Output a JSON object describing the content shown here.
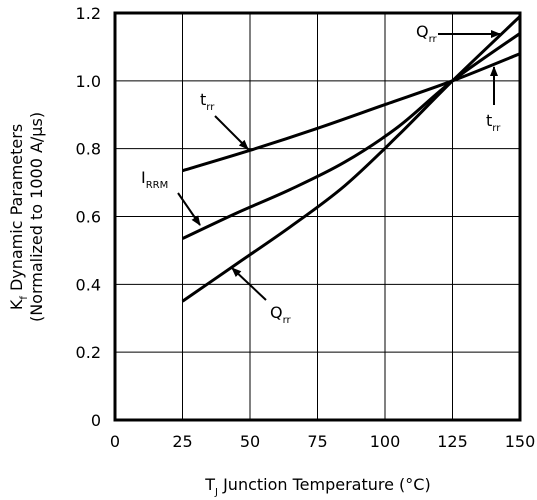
{
  "chart_data": {
    "type": "line",
    "xlabel": {
      "main": "T",
      "sub": "J",
      "rest": " Junction Temperature (°C)"
    },
    "ylabel": {
      "line1": {
        "main": "K",
        "sub": "f",
        "rest": " Dynamic Parameters"
      },
      "line2": "(Normalized to 1000 A/µs)"
    },
    "xlim": [
      0,
      150
    ],
    "ylim": [
      0,
      1.2
    ],
    "xticks": [
      "0",
      "25",
      "50",
      "75",
      "100",
      "125",
      "150"
    ],
    "yticks": [
      "0",
      "0.2",
      "0.4",
      "0.6",
      "0.8",
      "1.0",
      "1.2"
    ],
    "grid": true,
    "series": [
      {
        "x": [
          25,
          50,
          75,
          100,
          125,
          150
        ],
        "y": [
          0.735,
          0.795,
          0.86,
          0.93,
          1.0,
          1.08
        ]
      },
      {
        "x": [
          25,
          45,
          65,
          85,
          105,
          125,
          150
        ],
        "y": [
          0.535,
          0.61,
          0.68,
          0.76,
          0.865,
          1.0,
          1.14
        ]
      },
      {
        "x": [
          25,
          45,
          65,
          85,
          105,
          125,
          150
        ],
        "y": [
          0.35,
          0.46,
          0.57,
          0.69,
          0.84,
          1.0,
          1.19
        ]
      }
    ],
    "annotations": [
      {
        "main": "t",
        "sub": "rr"
      },
      {
        "main": "I",
        "sub": "RRM"
      },
      {
        "main": "Q",
        "sub": "rr"
      },
      {
        "main": "Q",
        "sub": "rr"
      },
      {
        "main": "t",
        "sub": "rr"
      }
    ],
    "colors": {
      "line": "#000000",
      "grid": "#000000"
    }
  }
}
